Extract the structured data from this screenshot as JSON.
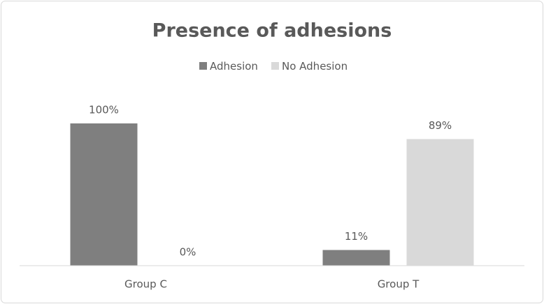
{
  "chart_data": {
    "type": "bar",
    "title": "Presence of adhesions",
    "categories": [
      "Group C",
      "Group T"
    ],
    "series": [
      {
        "name": "Adhesion",
        "color": "#7f7f7f",
        "values": [
          100,
          11
        ],
        "value_labels": [
          "100%",
          "11%"
        ]
      },
      {
        "name": "No Adhesion",
        "color": "#d9d9d9",
        "values": [
          0,
          89
        ],
        "value_labels": [
          "0%",
          "89%"
        ]
      }
    ],
    "legend": "top"
  }
}
